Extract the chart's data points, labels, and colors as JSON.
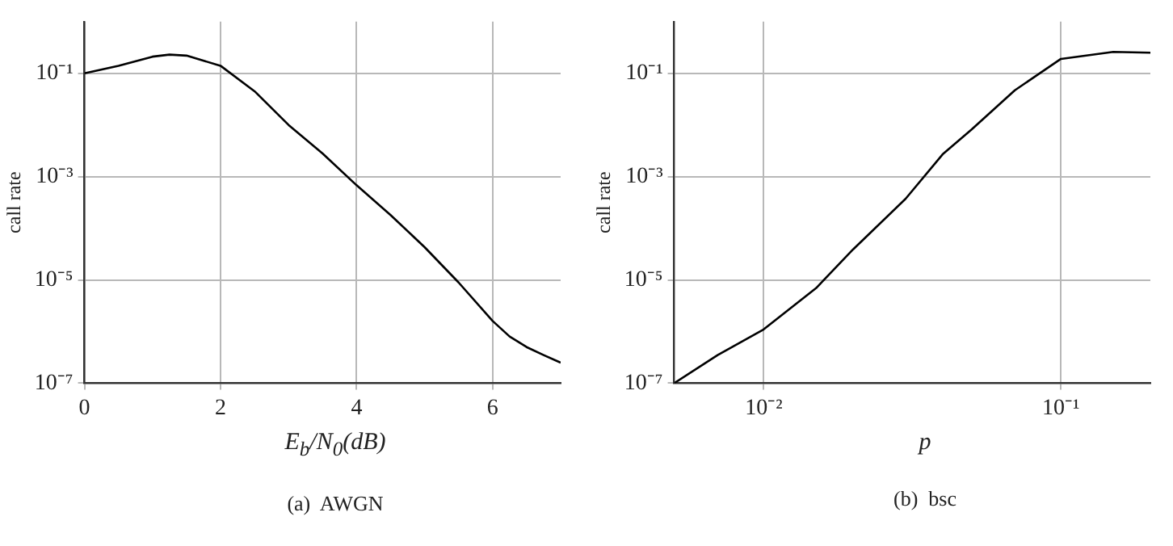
{
  "chart_data": [
    {
      "type": "line",
      "xlabel": "E$_{b}$/N$_{0}$(dB)",
      "ylabel": "call rate",
      "annotations": [
        "(a)  AWGN"
      ],
      "log": "y",
      "grid": true,
      "marker": "none",
      "line_style": "solid",
      "xlim": [
        0,
        7
      ],
      "xticks": [
        0,
        2,
        4,
        6
      ],
      "ylim": [
        1e-07,
        1
      ],
      "yticks": [
        {
          "value": 0.1,
          "label": "10⁻¹"
        },
        {
          "value": 0.001,
          "label": "10⁻³"
        },
        {
          "value": 1e-05,
          "label": "10⁻⁵"
        },
        {
          "value": 1e-07,
          "label": "10⁻⁷"
        }
      ],
      "series": [
        {
          "color": "#000000",
          "x": [
            0,
            0.5,
            1,
            1.25,
            1.5,
            2,
            2.5,
            3,
            3.5,
            4,
            4.5,
            5,
            5.5,
            6,
            6.25,
            6.5,
            6.75,
            7
          ],
          "values": [
            0.1,
            0.14,
            0.21,
            0.23,
            0.22,
            0.14,
            0.045,
            0.01,
            0.0028,
            0.00068,
            0.00018,
            4.3e-05,
            8.9e-06,
            1.6e-06,
            8e-07,
            5e-07,
            3.5e-07,
            2.5e-07
          ]
        }
      ]
    },
    {
      "type": "line",
      "xlabel": "p",
      "ylabel": "call rate",
      "annotations": [
        "(b)  bsc"
      ],
      "log": "xy",
      "grid": true,
      "marker": "none",
      "line_style": "solid",
      "xlim": [
        0.005,
        0.2
      ],
      "xticks": [
        {
          "value": 0.01,
          "label": "10⁻²"
        },
        {
          "value": 0.1,
          "label": "10⁻¹"
        }
      ],
      "ylim": [
        1e-07,
        1
      ],
      "yticks": [
        {
          "value": 0.1,
          "label": "10⁻¹"
        },
        {
          "value": 0.001,
          "label": "10⁻³"
        },
        {
          "value": 1e-05,
          "label": "10⁻⁵"
        },
        {
          "value": 1e-07,
          "label": "10⁻⁷"
        }
      ],
      "series": [
        {
          "color": "#000000",
          "x": [
            0.005,
            0.007,
            0.01,
            0.015,
            0.02,
            0.03,
            0.04,
            0.05,
            0.07,
            0.1,
            0.15,
            0.2
          ],
          "values": [
            1e-07,
            3.5e-07,
            1.1e-06,
            6.9e-06,
            3.9e-05,
            0.00037,
            0.0027,
            0.0081,
            0.047,
            0.19,
            0.26,
            0.25
          ]
        }
      ]
    }
  ]
}
